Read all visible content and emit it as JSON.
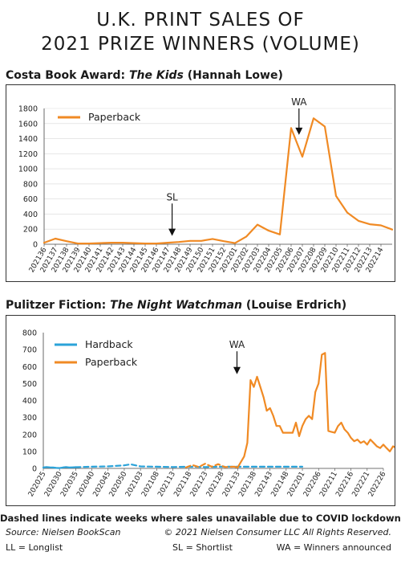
{
  "title_line1": "U.K. PRINT SALES OF",
  "title_line2": "2021 PRIZE WINNERS (VOLUME)",
  "panel1": {
    "heading_pre": "Costa Book Award: ",
    "heading_book": "The Kids",
    "heading_post": " (Hannah Lowe)"
  },
  "panel2": {
    "heading_pre": "Pulitzer Fiction: ",
    "heading_book": "The Night Watchman",
    "heading_post": " (Louise Erdrich)"
  },
  "footer": {
    "note": "Dashed lines indicate weeks where sales unavailable due to COVID lockdowns",
    "source": "Source: Nielsen BookScan",
    "copyright": "© 2021 Nielsen Consumer LLC All Rights Reserved.",
    "key_ll": "LL = Longlist",
    "key_sl": "SL = Shortlist",
    "key_wa": "WA = Winners announced"
  },
  "colors": {
    "orange": "#f08a24",
    "blue": "#2ba3d9",
    "frame": "#333333",
    "grid": "#d9d9d9"
  },
  "chart_data": [
    {
      "type": "line",
      "title": "Costa Book Award: The Kids (Hannah Lowe)",
      "xlabel": "",
      "ylabel": "",
      "yticks": [
        "0",
        "200",
        "400",
        "600",
        "800",
        "1000",
        "1200",
        "1400",
        "1600",
        "1800"
      ],
      "y_tick_values": [
        0,
        200,
        400,
        600,
        800,
        1000,
        1200,
        1400,
        1600,
        1800
      ],
      "x_tick_labels": [
        "202136",
        "202137",
        "202138",
        "202139",
        "202140",
        "202141",
        "202142",
        "202143",
        "202144",
        "202145",
        "202146",
        "202147",
        "202148",
        "202149",
        "202150",
        "202151",
        "202152",
        "202201",
        "202202",
        "202203",
        "202204",
        "202205",
        "202206",
        "202207",
        "202208",
        "202209",
        "202210",
        "202211",
        "202212",
        "202213",
        "202214"
      ],
      "grid": true,
      "legend_position": "top-left",
      "series": [
        {
          "name": "Paperback",
          "color": "#f08a24",
          "style": "solid",
          "values": [
            [
              0,
              20
            ],
            [
              1,
              75
            ],
            [
              2,
              40
            ],
            [
              3,
              10
            ],
            [
              4,
              10
            ],
            [
              5,
              15
            ],
            [
              6,
              20
            ],
            [
              7,
              20
            ],
            [
              8,
              15
            ],
            [
              9,
              10
            ],
            [
              10,
              10
            ],
            [
              11,
              20
            ],
            [
              12,
              30
            ],
            [
              13,
              45
            ],
            [
              14,
              45
            ],
            [
              15,
              70
            ],
            [
              16,
              40
            ],
            [
              17,
              15
            ],
            [
              18,
              100
            ],
            [
              19,
              260
            ],
            [
              20,
              180
            ],
            [
              21,
              130
            ],
            [
              22,
              1540
            ],
            [
              23,
              1160
            ],
            [
              24,
              1670
            ],
            [
              25,
              1560
            ],
            [
              26,
              640
            ],
            [
              27,
              420
            ],
            [
              28,
              310
            ],
            [
              29,
              265
            ],
            [
              30,
              250
            ],
            [
              31,
              195
            ]
          ]
        }
      ],
      "annotations": [
        {
          "text": "SL",
          "x": 11.4,
          "arrow_from": 540,
          "arrow_to": 110
        },
        {
          "text": "WA",
          "x": 22.7,
          "arrow_from": 1800,
          "arrow_to": 1450
        }
      ]
    },
    {
      "type": "line",
      "title": "Pulitzer Fiction: The Night Watchman (Louise Erdrich)",
      "xlabel": "",
      "ylabel": "",
      "yticks": [
        "0",
        "100",
        "200",
        "300",
        "400",
        "500",
        "600",
        "700",
        "800"
      ],
      "y_tick_values": [
        0,
        100,
        200,
        300,
        400,
        500,
        600,
        700,
        800
      ],
      "x_tick_labels": [
        "202025",
        "202030",
        "202035",
        "202040",
        "202045",
        "202050",
        "202103",
        "202108",
        "202113",
        "202118",
        "202123",
        "202128",
        "202133",
        "202138",
        "202143",
        "202148",
        "202201",
        "202206",
        "202211",
        "202216",
        "202221",
        "202226"
      ],
      "x_tick_every": 5,
      "grid": false,
      "legend_position": "top-left",
      "series": [
        {
          "name": "Hardback",
          "color": "#2ba3d9",
          "style": "solid",
          "values": [
            [
              0,
              5
            ],
            [
              1,
              8
            ],
            [
              2,
              6
            ],
            [
              3,
              5
            ],
            [
              4,
              3
            ],
            [
              5,
              2
            ],
            [
              6,
              5
            ],
            [
              7,
              8
            ],
            [
              8,
              5
            ],
            [
              9,
              6
            ],
            [
              10,
              7
            ]
          ]
        },
        {
          "name": "Hardback (COVID lockdown)",
          "color": "#2ba3d9",
          "style": "dashed",
          "values": [
            [
              10,
              7
            ],
            [
              15,
              10
            ],
            [
              20,
              12
            ],
            [
              25,
              18
            ],
            [
              27,
              24
            ],
            [
              30,
              12
            ],
            [
              35,
              10
            ],
            [
              40,
              8
            ],
            [
              45,
              10
            ],
            [
              50,
              8
            ],
            [
              55,
              10
            ],
            [
              60,
              10
            ],
            [
              65,
              10
            ],
            [
              70,
              10
            ],
            [
              75,
              10
            ],
            [
              80,
              10
            ]
          ]
        },
        {
          "name": "Paperback (COVID lockdown)",
          "color": "#f08a24",
          "style": "dashed",
          "values": [
            [
              44,
              5
            ],
            [
              46,
              20
            ],
            [
              48,
              8
            ],
            [
              50,
              28
            ],
            [
              52,
              10
            ],
            [
              54,
              25
            ],
            [
              56,
              8
            ],
            [
              59,
              10
            ]
          ]
        },
        {
          "name": "Paperback",
          "color": "#f08a24",
          "style": "solid",
          "values": [
            [
              59,
              10
            ],
            [
              60,
              5
            ],
            [
              62,
              70
            ],
            [
              63,
              150
            ],
            [
              64,
              520
            ],
            [
              65,
              480
            ],
            [
              66,
              540
            ],
            [
              67,
              480
            ],
            [
              68,
              420
            ],
            [
              69,
              340
            ],
            [
              70,
              355
            ],
            [
              71,
              310
            ],
            [
              72,
              250
            ],
            [
              73,
              250
            ],
            [
              74,
              210
            ],
            [
              75,
              210
            ],
            [
              76,
              210
            ],
            [
              77,
              210
            ],
            [
              78,
              270
            ],
            [
              79,
              190
            ],
            [
              80,
              250
            ],
            [
              81,
              290
            ],
            [
              82,
              310
            ],
            [
              83,
              290
            ],
            [
              84,
              450
            ],
            [
              85,
              500
            ],
            [
              86,
              670
            ],
            [
              87,
              680
            ],
            [
              88,
              220
            ],
            [
              89,
              215
            ],
            [
              90,
              210
            ],
            [
              91,
              250
            ],
            [
              92,
              270
            ],
            [
              93,
              230
            ],
            [
              94,
              210
            ],
            [
              95,
              180
            ],
            [
              96,
              160
            ],
            [
              97,
              170
            ],
            [
              98,
              150
            ],
            [
              99,
              160
            ],
            [
              100,
              140
            ],
            [
              101,
              170
            ],
            [
              102,
              150
            ],
            [
              103,
              130
            ],
            [
              104,
              120
            ],
            [
              105,
              140
            ],
            [
              106,
              120
            ],
            [
              107,
              100
            ],
            [
              108,
              130
            ],
            [
              109,
              120
            ],
            [
              110,
              100
            ],
            [
              111,
              120
            ],
            [
              112,
              110
            ],
            [
              113,
              120
            ]
          ]
        }
      ],
      "legend_items": [
        "Hardback",
        "Paperback"
      ],
      "annotations": [
        {
          "text": "WA",
          "x": 59.8,
          "arrow_from": 690,
          "arrow_to": 555
        }
      ]
    }
  ]
}
